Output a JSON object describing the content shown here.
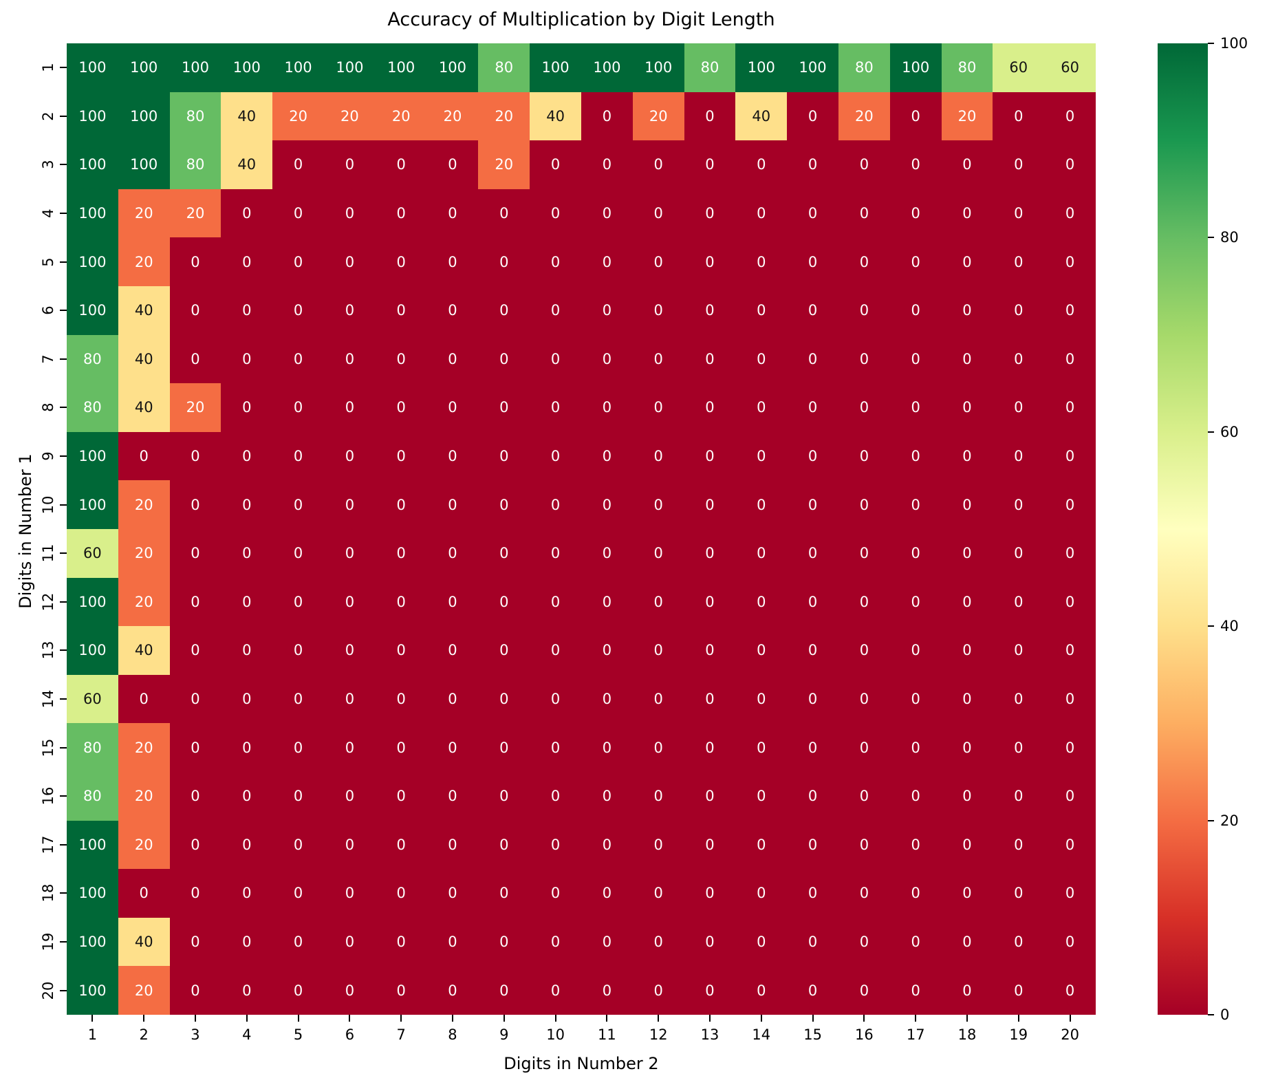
{
  "chart_data": {
    "type": "heatmap",
    "title": "Accuracy of Multiplication by Digit Length",
    "xlabel": "Digits in Number 2",
    "ylabel": "Digits in Number 1",
    "x_categories": [
      1,
      2,
      3,
      4,
      5,
      6,
      7,
      8,
      9,
      10,
      11,
      12,
      13,
      14,
      15,
      16,
      17,
      18,
      19,
      20
    ],
    "y_categories": [
      1,
      2,
      3,
      4,
      5,
      6,
      7,
      8,
      9,
      10,
      11,
      12,
      13,
      14,
      15,
      16,
      17,
      18,
      19,
      20
    ],
    "values": [
      [
        100,
        100,
        100,
        100,
        100,
        100,
        100,
        100,
        80,
        100,
        100,
        100,
        80,
        100,
        100,
        80,
        100,
        80,
        60,
        60
      ],
      [
        100,
        100,
        80,
        40,
        20,
        20,
        20,
        20,
        20,
        40,
        0,
        20,
        0,
        40,
        0,
        20,
        0,
        20,
        0,
        0
      ],
      [
        100,
        100,
        80,
        40,
        0,
        0,
        0,
        0,
        20,
        0,
        0,
        0,
        0,
        0,
        0,
        0,
        0,
        0,
        0,
        0
      ],
      [
        100,
        20,
        20,
        0,
        0,
        0,
        0,
        0,
        0,
        0,
        0,
        0,
        0,
        0,
        0,
        0,
        0,
        0,
        0,
        0
      ],
      [
        100,
        20,
        0,
        0,
        0,
        0,
        0,
        0,
        0,
        0,
        0,
        0,
        0,
        0,
        0,
        0,
        0,
        0,
        0,
        0
      ],
      [
        100,
        40,
        0,
        0,
        0,
        0,
        0,
        0,
        0,
        0,
        0,
        0,
        0,
        0,
        0,
        0,
        0,
        0,
        0,
        0
      ],
      [
        80,
        40,
        0,
        0,
        0,
        0,
        0,
        0,
        0,
        0,
        0,
        0,
        0,
        0,
        0,
        0,
        0,
        0,
        0,
        0
      ],
      [
        80,
        40,
        20,
        0,
        0,
        0,
        0,
        0,
        0,
        0,
        0,
        0,
        0,
        0,
        0,
        0,
        0,
        0,
        0,
        0
      ],
      [
        100,
        0,
        0,
        0,
        0,
        0,
        0,
        0,
        0,
        0,
        0,
        0,
        0,
        0,
        0,
        0,
        0,
        0,
        0,
        0
      ],
      [
        100,
        20,
        0,
        0,
        0,
        0,
        0,
        0,
        0,
        0,
        0,
        0,
        0,
        0,
        0,
        0,
        0,
        0,
        0,
        0
      ],
      [
        60,
        20,
        0,
        0,
        0,
        0,
        0,
        0,
        0,
        0,
        0,
        0,
        0,
        0,
        0,
        0,
        0,
        0,
        0,
        0
      ],
      [
        100,
        20,
        0,
        0,
        0,
        0,
        0,
        0,
        0,
        0,
        0,
        0,
        0,
        0,
        0,
        0,
        0,
        0,
        0,
        0
      ],
      [
        100,
        40,
        0,
        0,
        0,
        0,
        0,
        0,
        0,
        0,
        0,
        0,
        0,
        0,
        0,
        0,
        0,
        0,
        0,
        0
      ],
      [
        60,
        0,
        0,
        0,
        0,
        0,
        0,
        0,
        0,
        0,
        0,
        0,
        0,
        0,
        0,
        0,
        0,
        0,
        0,
        0
      ],
      [
        80,
        20,
        0,
        0,
        0,
        0,
        0,
        0,
        0,
        0,
        0,
        0,
        0,
        0,
        0,
        0,
        0,
        0,
        0,
        0
      ],
      [
        80,
        20,
        0,
        0,
        0,
        0,
        0,
        0,
        0,
        0,
        0,
        0,
        0,
        0,
        0,
        0,
        0,
        0,
        0,
        0
      ],
      [
        100,
        20,
        0,
        0,
        0,
        0,
        0,
        0,
        0,
        0,
        0,
        0,
        0,
        0,
        0,
        0,
        0,
        0,
        0,
        0
      ],
      [
        100,
        0,
        0,
        0,
        0,
        0,
        0,
        0,
        0,
        0,
        0,
        0,
        0,
        0,
        0,
        0,
        0,
        0,
        0,
        0
      ],
      [
        100,
        40,
        0,
        0,
        0,
        0,
        0,
        0,
        0,
        0,
        0,
        0,
        0,
        0,
        0,
        0,
        0,
        0,
        0,
        0
      ],
      [
        100,
        20,
        0,
        0,
        0,
        0,
        0,
        0,
        0,
        0,
        0,
        0,
        0,
        0,
        0,
        0,
        0,
        0,
        0,
        0
      ]
    ],
    "value_range": [
      0,
      100
    ],
    "colormap": "RdYlGn",
    "grid": false,
    "legend": false,
    "value_colors": {
      "0": "#a50026",
      "20": "#f46d43",
      "40": "#fee08b",
      "60": "#d9ef8b",
      "80": "#66bd63",
      "100": "#006837"
    },
    "text_colors": {
      "0": "#ffffff",
      "20": "#ffffff",
      "40": "#141414",
      "60": "#141414",
      "80": "#ffffff",
      "100": "#ffffff"
    },
    "colorbar": {
      "position": "right",
      "ticks": [
        100,
        80,
        60,
        40,
        20,
        0
      ],
      "gradient_top_to_bottom": [
        "#006837",
        "#1a9850",
        "#66bd63",
        "#a6d96a",
        "#d9ef8b",
        "#ffffbf",
        "#fee08b",
        "#fdae61",
        "#f46d43",
        "#d73027",
        "#a50026"
      ]
    }
  }
}
